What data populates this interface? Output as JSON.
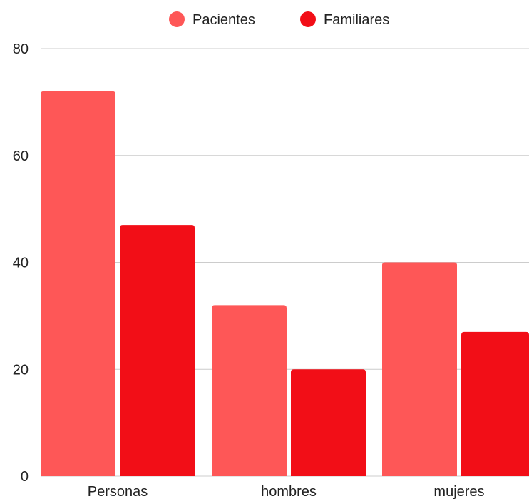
{
  "chart_data": {
    "type": "bar",
    "title": "",
    "xlabel": "",
    "ylabel": "",
    "categories": [
      "Personas",
      "hombres",
      "mujeres"
    ],
    "series": [
      {
        "name": "Pacientes",
        "values": [
          72,
          32,
          40
        ],
        "color": "#fe5757"
      },
      {
        "name": "Familiares",
        "values": [
          47,
          20,
          27
        ],
        "color": "#f20e17"
      }
    ],
    "ylim": [
      0,
      80
    ],
    "yticks": [
      "0",
      "20",
      "40",
      "60",
      "80"
    ],
    "grid": true,
    "legend_position": "top-center"
  }
}
